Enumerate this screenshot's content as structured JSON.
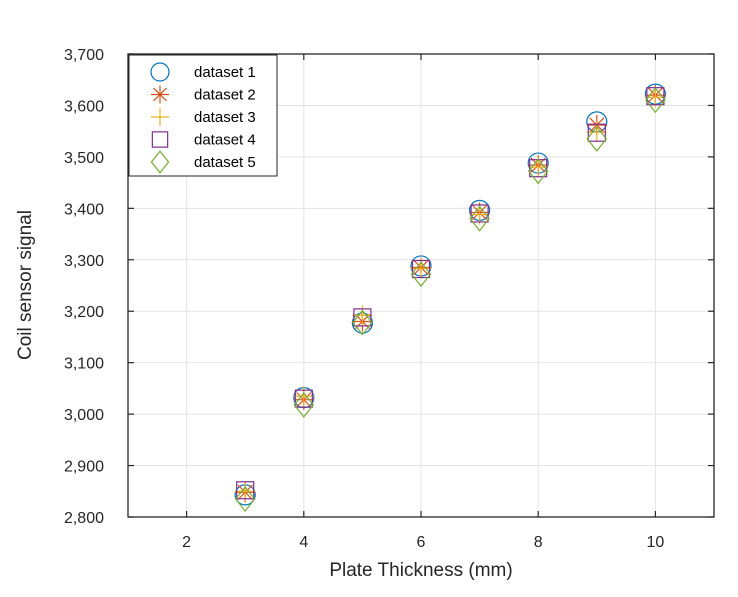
{
  "chart_data": {
    "type": "scatter",
    "title": "",
    "xlabel": "Plate Thickness (mm)",
    "ylabel": "Coil sensor signal",
    "xlim": [
      1,
      11
    ],
    "ylim": [
      2800,
      3700
    ],
    "xticks": [
      2,
      4,
      6,
      8,
      10
    ],
    "yticks": [
      2800,
      2900,
      3000,
      3100,
      3200,
      3300,
      3400,
      3500,
      3600,
      3700
    ],
    "ytick_labels": [
      "2,800",
      "2,900",
      "3,000",
      "3,100",
      "3,200",
      "3,300",
      "3,400",
      "3,500",
      "3,600",
      "3,700"
    ],
    "grid": true,
    "legend_position": "upper-left",
    "x": [
      3,
      4,
      5,
      6,
      7,
      8,
      9,
      10
    ],
    "series": [
      {
        "name": "dataset 1",
        "marker": "circle",
        "color": "#0072BD",
        "values": [
          2843,
          3032,
          3177,
          3288,
          3396,
          3488,
          3568,
          3622
        ]
      },
      {
        "name": "dataset 2",
        "marker": "asterisk",
        "color": "#D95319",
        "values": [
          2848,
          3028,
          3180,
          3285,
          3392,
          3484,
          3562,
          3620
        ]
      },
      {
        "name": "dataset 3",
        "marker": "plus",
        "color": "#EDB120",
        "values": [
          2850,
          3035,
          3192,
          3283,
          3388,
          3480,
          3548,
          3616
        ]
      },
      {
        "name": "dataset 4",
        "marker": "square",
        "color": "#7E2F8E",
        "values": [
          2852,
          3030,
          3188,
          3282,
          3390,
          3478,
          3547,
          3618
        ]
      },
      {
        "name": "dataset 5",
        "marker": "diamond",
        "color": "#77AC30",
        "values": [
          2835,
          3018,
          3178,
          3272,
          3380,
          3472,
          3535,
          3610
        ]
      }
    ]
  },
  "legend": {
    "items": [
      "dataset 1",
      "dataset 2",
      "dataset 3",
      "dataset 4",
      "dataset 5"
    ]
  },
  "axes": {
    "xlabel": "Plate Thickness (mm)",
    "ylabel": "Coil sensor signal"
  }
}
